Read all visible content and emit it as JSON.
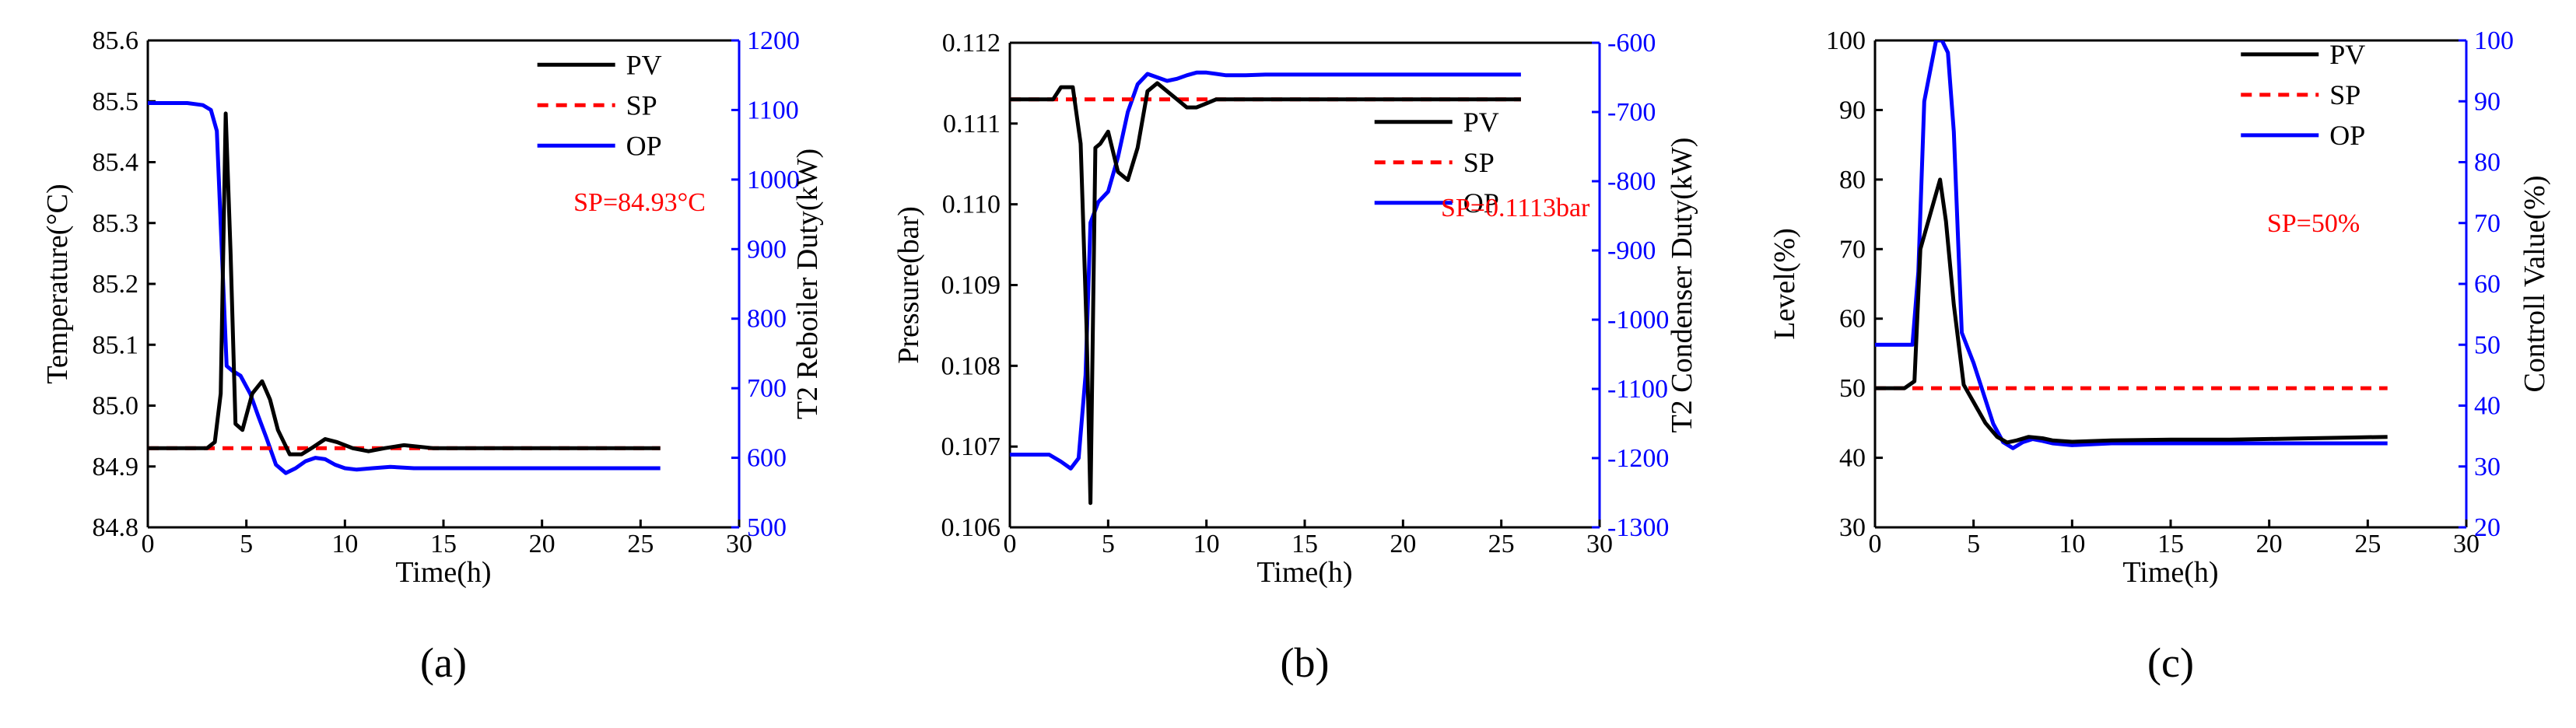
{
  "colors": {
    "pv": "#000000",
    "sp": "#ff0000",
    "op": "#0000ff",
    "axis_left": "#000000",
    "axis_right": "#0000ff"
  },
  "chart_data": [
    {
      "type": "line",
      "panel_label": "(a)",
      "xlabel": "Time(h)",
      "ylabel": "Temperature(°C)",
      "y2label": "T2 Reboiler Duty(kW)",
      "xlim": [
        0,
        30
      ],
      "ylim": [
        84.8,
        85.6
      ],
      "y2lim": [
        500,
        1200
      ],
      "xticks": [
        0,
        5,
        10,
        15,
        20,
        25,
        30
      ],
      "xtick_labels": [
        "0",
        "5",
        "10",
        "15",
        "20",
        "25",
        "30"
      ],
      "yticks": [
        84.8,
        84.9,
        85.0,
        85.1,
        85.2,
        85.3,
        85.4,
        85.5,
        85.6
      ],
      "ytick_labels": [
        "84.8",
        "84.9",
        "85.0",
        "85.1",
        "85.2",
        "85.3",
        "85.4",
        "85.5",
        "85.6"
      ],
      "y2ticks": [
        500,
        600,
        700,
        800,
        900,
        1000,
        1100,
        1200
      ],
      "y2tick_labels": [
        "500",
        "600",
        "700",
        "800",
        "900",
        "1000",
        "1100",
        "1200"
      ],
      "annotation": "SP=84.93°C",
      "annotation_at": [
        28.3,
        85.32
      ],
      "legend_at": [
        24.5,
        85.56
      ],
      "series": [
        {
          "name": "PV",
          "axis": "left",
          "style": "solid",
          "x": [
            0,
            2.5,
            3.0,
            3.4,
            3.7,
            3.95,
            4.2,
            4.45,
            4.8,
            5.3,
            5.8,
            6.2,
            6.6,
            7.2,
            7.8,
            8.3,
            9.0,
            9.6,
            10.4,
            11.2,
            12.0,
            13.0,
            14.5,
            16,
            18,
            20,
            22,
            24,
            26
          ],
          "y": [
            84.93,
            84.93,
            84.93,
            84.94,
            85.02,
            85.48,
            85.25,
            84.97,
            84.96,
            85.02,
            85.04,
            85.01,
            84.96,
            84.92,
            84.92,
            84.93,
            84.945,
            84.94,
            84.93,
            84.925,
            84.93,
            84.935,
            84.93,
            84.93,
            84.93,
            84.93,
            84.93,
            84.93,
            84.93
          ]
        },
        {
          "name": "SP",
          "axis": "left",
          "style": "dashed",
          "x": [
            0,
            26
          ],
          "y": [
            84.93,
            84.93
          ]
        },
        {
          "name": "OP",
          "axis": "right",
          "style": "solid",
          "x": [
            0,
            2.0,
            2.8,
            3.2,
            3.5,
            3.75,
            4.0,
            4.3,
            4.7,
            5.2,
            5.6,
            6.0,
            6.5,
            7.0,
            7.5,
            8.0,
            8.5,
            9.0,
            9.5,
            10.0,
            10.6,
            11.4,
            12.3,
            13.5,
            15,
            18,
            21,
            24,
            26
          ],
          "y": [
            1110,
            1110,
            1107,
            1100,
            1070,
            900,
            732,
            725,
            718,
            692,
            660,
            630,
            590,
            578,
            585,
            595,
            600,
            598,
            590,
            585,
            583,
            585,
            587,
            585,
            585,
            585,
            585,
            585,
            585
          ]
        }
      ]
    },
    {
      "type": "line",
      "panel_label": "(b)",
      "xlabel": "Time(h)",
      "ylabel": "Pressure(bar)",
      "y2label": "T2 Condenser Duty(kW)",
      "xlim": [
        0,
        30
      ],
      "ylim": [
        0.106,
        0.112
      ],
      "y2lim": [
        -1300,
        -600
      ],
      "xticks": [
        0,
        5,
        10,
        15,
        20,
        25,
        30
      ],
      "xtick_labels": [
        "0",
        "5",
        "10",
        "15",
        "20",
        "25",
        "30"
      ],
      "yticks": [
        0.106,
        0.107,
        0.108,
        0.109,
        0.11,
        0.111,
        0.112
      ],
      "ytick_labels": [
        "0.106",
        "0.107",
        "0.108",
        "0.109",
        "0.110",
        "0.111",
        "0.112"
      ],
      "y2ticks": [
        -1300,
        -1200,
        -1100,
        -1000,
        -900,
        -800,
        -700,
        -600
      ],
      "y2tick_labels": [
        "-1300",
        "-1200",
        "-1100",
        "-1000",
        "-900",
        "-800",
        "-700",
        "-600"
      ],
      "annotation": "SP=0.1113bar",
      "annotation_at": [
        29.5,
        0.10985
      ],
      "legend_at": [
        23.3,
        0.11102
      ],
      "series": [
        {
          "name": "PV",
          "axis": "left",
          "style": "solid",
          "x": [
            0,
            1.5,
            2.2,
            2.6,
            3.0,
            3.2,
            3.6,
            3.9,
            4.1,
            4.35,
            4.6,
            5.0,
            5.5,
            6.0,
            6.5,
            7.0,
            7.5,
            8.0,
            8.5,
            9.0,
            9.5,
            10.0,
            10.5,
            11.0,
            12.0,
            13.0,
            14.0,
            16,
            18,
            20,
            22,
            24,
            26
          ],
          "y": [
            0.1113,
            0.1113,
            0.1113,
            0.11145,
            0.11145,
            0.11145,
            0.11075,
            0.1085,
            0.1063,
            0.1107,
            0.11075,
            0.1109,
            0.1104,
            0.1103,
            0.1107,
            0.1114,
            0.1115,
            0.1114,
            0.1113,
            0.1112,
            0.1112,
            0.11125,
            0.1113,
            0.1113,
            0.1113,
            0.1113,
            0.1113,
            0.1113,
            0.1113,
            0.1113,
            0.1113,
            0.1113,
            0.1113
          ]
        },
        {
          "name": "SP",
          "axis": "left",
          "style": "dashed",
          "x": [
            0,
            26
          ],
          "y": [
            0.1113,
            0.1113
          ]
        },
        {
          "name": "OP",
          "axis": "right",
          "style": "solid",
          "x": [
            0,
            2.0,
            2.6,
            3.1,
            3.5,
            3.85,
            4.1,
            4.5,
            5.0,
            5.5,
            6.0,
            6.5,
            7.0,
            7.5,
            8.0,
            8.5,
            9.0,
            9.5,
            10.0,
            10.5,
            11.0,
            12.0,
            13.0,
            14.0,
            16,
            18,
            20,
            22,
            24,
            26
          ],
          "y": [
            -1195,
            -1195,
            -1205,
            -1215,
            -1200,
            -1080,
            -860,
            -830,
            -815,
            -765,
            -700,
            -660,
            -645,
            -650,
            -655,
            -652,
            -647,
            -643,
            -643,
            -645,
            -647,
            -647,
            -646,
            -646,
            -646,
            -646,
            -646,
            -646,
            -646,
            -646
          ]
        }
      ]
    },
    {
      "type": "line",
      "panel_label": "(c)",
      "xlabel": "Time(h)",
      "ylabel": "Level(%)",
      "y2label": "Controll Value(%)",
      "xlim": [
        0,
        30
      ],
      "ylim": [
        30,
        100
      ],
      "y2lim": [
        20,
        100
      ],
      "xticks": [
        0,
        5,
        10,
        15,
        20,
        25,
        30
      ],
      "xtick_labels": [
        "0",
        "5",
        "10",
        "15",
        "20",
        "25",
        "30"
      ],
      "yticks": [
        30,
        40,
        50,
        60,
        70,
        80,
        90,
        100
      ],
      "ytick_labels": [
        "30",
        "40",
        "50",
        "60",
        "70",
        "80",
        "90",
        "100"
      ],
      "y2ticks": [
        20,
        30,
        40,
        50,
        60,
        70,
        80,
        90,
        100
      ],
      "y2tick_labels": [
        "20",
        "30",
        "40",
        "50",
        "60",
        "70",
        "80",
        "90",
        "100"
      ],
      "annotation": "SP=50%",
      "annotation_at": [
        24.6,
        72.5
      ],
      "legend_at": [
        23.3,
        98.0
      ],
      "series": [
        {
          "name": "PV",
          "axis": "left",
          "style": "solid",
          "x": [
            0,
            1.5,
            2.0,
            2.3,
            2.6,
            3.0,
            3.3,
            3.6,
            4.0,
            4.5,
            5.0,
            5.6,
            6.2,
            6.7,
            7.2,
            7.8,
            8.5,
            9.0,
            10.0,
            12.0,
            15.0,
            18,
            20,
            22,
            24,
            26
          ],
          "y": [
            50,
            50,
            51,
            70,
            73,
            77,
            80,
            74,
            62,
            50.5,
            48,
            45,
            43,
            42.2,
            42.5,
            43,
            42.8,
            42.5,
            42.3,
            42.5,
            42.6,
            42.6,
            42.7,
            42.8,
            42.9,
            43
          ]
        },
        {
          "name": "SP",
          "axis": "left",
          "style": "dashed",
          "x": [
            0,
            26
          ],
          "y": [
            50,
            50
          ]
        },
        {
          "name": "OP",
          "axis": "right",
          "style": "solid",
          "x": [
            0,
            1.9,
            2.2,
            2.5,
            2.8,
            3.1,
            3.4,
            3.7,
            4.0,
            4.4,
            5.0,
            5.6,
            6.0,
            6.5,
            7.0,
            7.5,
            8.0,
            8.5,
            9.0,
            10.0,
            12.0,
            15.0,
            18,
            21,
            24,
            26
          ],
          "y": [
            50,
            50,
            62,
            90,
            95,
            100,
            100,
            98,
            85,
            52,
            47,
            41,
            37,
            34,
            33,
            34,
            34.5,
            34.2,
            33.8,
            33.5,
            33.8,
            33.8,
            33.8,
            33.8,
            33.8,
            33.8
          ]
        }
      ]
    }
  ]
}
